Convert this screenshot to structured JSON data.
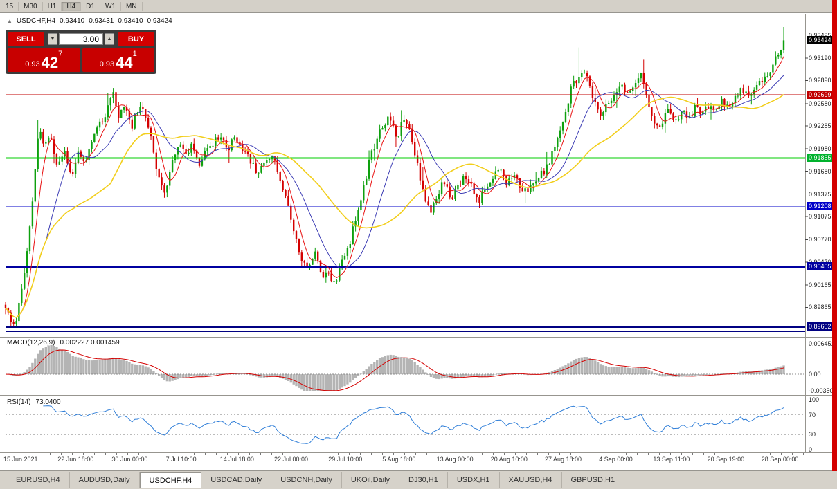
{
  "toolbar": {
    "items": [
      "15",
      "M30",
      "H1",
      "H4",
      "D1",
      "W1",
      "MN"
    ],
    "active": "H4"
  },
  "chart_header": {
    "icon": "▲",
    "symbol": "USDCHF,H4",
    "open": "0.93410",
    "high": "0.93431",
    "low": "0.93410",
    "close": "0.93424"
  },
  "trade_panel": {
    "sell_label": "SELL",
    "buy_label": "BUY",
    "volume_value": "3.00",
    "volume_down_icon": "▼",
    "volume_up_icon": "▲",
    "sell_price": {
      "prefix": "0.93",
      "big": "42",
      "sup": "7"
    },
    "buy_price": {
      "prefix": "0.93",
      "big": "44",
      "sup": "1"
    }
  },
  "price_axis": {
    "ticks": [
      {
        "label": "0.93495",
        "price": 0.93495
      },
      {
        "label": "0.93190",
        "price": 0.9319
      },
      {
        "label": "0.92890",
        "price": 0.9289
      },
      {
        "label": "0.92580",
        "price": 0.9258
      },
      {
        "label": "0.92285",
        "price": 0.92285
      },
      {
        "label": "0.91980",
        "price": 0.9198
      },
      {
        "label": "0.91680",
        "price": 0.9168
      },
      {
        "label": "0.91375",
        "price": 0.91375
      },
      {
        "label": "0.91075",
        "price": 0.91075
      },
      {
        "label": "0.90770",
        "price": 0.9077
      },
      {
        "label": "0.90470",
        "price": 0.9047
      },
      {
        "label": "0.90165",
        "price": 0.90165
      },
      {
        "label": "0.89865",
        "price": 0.89865
      }
    ],
    "current": {
      "label": "0.93424",
      "price": 0.93424,
      "bg": "#000000"
    },
    "badges": [
      {
        "label": "0.92699",
        "price": 0.92699,
        "bg": "#c00000"
      },
      {
        "label": "0.91855",
        "price": 0.91855,
        "bg": "#00b22d"
      },
      {
        "label": "0.91208",
        "price": 0.91208,
        "bg": "#0000c8"
      },
      {
        "label": "0.90405",
        "price": 0.90405,
        "bg": "#0000a0"
      },
      {
        "label": "0.89602",
        "price": 0.89602,
        "bg": "#000082"
      }
    ]
  },
  "time_axis": {
    "labels": [
      "15 Jun 2021",
      "22 Jun 18:00",
      "30 Jun 00:00",
      "7 Jul 10:00",
      "14 Jul 18:00",
      "22 Jul 00:00",
      "29 Jul 10:00",
      "5 Aug 18:00",
      "13 Aug 00:00",
      "20 Aug 10:00",
      "27 Aug 18:00",
      "4 Sep 00:00",
      "13 Sep 11:00",
      "20 Sep 19:00",
      "28 Sep 00:00"
    ]
  },
  "tabs": {
    "items": [
      "EURUSD,H4",
      "AUDUSD,Daily",
      "USDCHF,H4",
      "USDCAD,Daily",
      "USDCNH,Daily",
      "UKOil,Daily",
      "DJ30,H1",
      "USDX,H1",
      "XAUUSD,H4",
      "GBPUSD,H1"
    ],
    "active_index": 2
  },
  "chart_data": [
    {
      "type": "candlestick",
      "symbol": "USDCHF",
      "timeframe": "H4",
      "ohlc_current": {
        "open": 0.9341,
        "high": 0.93431,
        "low": 0.9341,
        "close": 0.93424
      },
      "current_price": 0.93424,
      "candle_count": 290,
      "colors": {
        "up": "#0ea00e",
        "down": "#d40000"
      },
      "y_axis": {
        "price_top": 0.93732,
        "price_bottom": 0.89565
      },
      "x_tick_labels": [
        "15 Jun 2021",
        "22 Jun 18:00",
        "30 Jun 00:00",
        "7 Jul 10:00",
        "14 Jul 18:00",
        "22 Jul 00:00",
        "29 Jul 10:00",
        "5 Aug 18:00",
        "13 Aug 00:00",
        "20 Aug 10:00",
        "27 Aug 18:00",
        "4 Sep 00:00",
        "13 Sep 11:00",
        "20 Sep 19:00",
        "28 Sep 00:00"
      ],
      "levels": [
        {
          "price": 0.92699,
          "color": "#c00000",
          "width": 1
        },
        {
          "price": 0.91855,
          "color": "#00cc00",
          "width": 2
        },
        {
          "price": 0.91208,
          "color": "#0000c8",
          "width": 1
        },
        {
          "price": 0.90405,
          "color": "#0000a0",
          "width": 2
        },
        {
          "price": 0.89602,
          "color": "#000082",
          "width": 2
        },
        {
          "price": 0.8954,
          "color": "#000082",
          "width": 1
        }
      ],
      "moving_averages": [
        {
          "name": "fast-ma",
          "period": 6,
          "color": "#e81010",
          "width": 1
        },
        {
          "name": "medium-ma",
          "period": 16,
          "color": "#3c3cb4",
          "width": 1
        },
        {
          "name": "slow-ma",
          "period": 40,
          "color": "#f2ce1b",
          "width": 1.6
        }
      ],
      "spikes": [
        {
          "f": 0.0427,
          "high": 0.9236
        },
        {
          "f": 0.1379,
          "high": 0.9276
        },
        {
          "f": 0.4235,
          "low": 0.9009
        },
        {
          "f": 0.7367,
          "high": 0.9333
        },
        {
          "f": 1,
          "high": 0.9349
        }
      ],
      "price_path": [
        [
          0,
          0.899
        ],
        [
          0.0053,
          0.8972
        ],
        [
          0.0125,
          0.8963
        ],
        [
          0.0196,
          0.9
        ],
        [
          0.0285,
          0.9065
        ],
        [
          0.0356,
          0.914
        ],
        [
          0.0427,
          0.9225
        ],
        [
          0.0498,
          0.92
        ],
        [
          0.0569,
          0.9215
        ],
        [
          0.0658,
          0.9172
        ],
        [
          0.0747,
          0.9195
        ],
        [
          0.0836,
          0.916
        ],
        [
          0.0925,
          0.919
        ],
        [
          0.1014,
          0.918
        ],
        [
          0.1103,
          0.9205
        ],
        [
          0.1192,
          0.9225
        ],
        [
          0.1281,
          0.9245
        ],
        [
          0.1379,
          0.927
        ],
        [
          0.1459,
          0.9238
        ],
        [
          0.153,
          0.9256
        ],
        [
          0.1619,
          0.9228
        ],
        [
          0.1708,
          0.925
        ],
        [
          0.1797,
          0.9245
        ],
        [
          0.1868,
          0.9215
        ],
        [
          0.1957,
          0.9165
        ],
        [
          0.2046,
          0.9138
        ],
        [
          0.2135,
          0.9175
        ],
        [
          0.2224,
          0.9205
        ],
        [
          0.2313,
          0.9192
        ],
        [
          0.2402,
          0.9206
        ],
        [
          0.2491,
          0.918
        ],
        [
          0.258,
          0.9192
        ],
        [
          0.2669,
          0.9206
        ],
        [
          0.2758,
          0.9216
        ],
        [
          0.2865,
          0.9198
        ],
        [
          0.2954,
          0.9214
        ],
        [
          0.3043,
          0.9196
        ],
        [
          0.3132,
          0.9186
        ],
        [
          0.3221,
          0.9164
        ],
        [
          0.331,
          0.918
        ],
        [
          0.3425,
          0.9192
        ],
        [
          0.3532,
          0.9158
        ],
        [
          0.3621,
          0.9122
        ],
        [
          0.371,
          0.9088
        ],
        [
          0.3799,
          0.9052
        ],
        [
          0.3888,
          0.904
        ],
        [
          0.3977,
          0.9062
        ],
        [
          0.4066,
          0.9032
        ],
        [
          0.4164,
          0.9026
        ],
        [
          0.4235,
          0.9018
        ],
        [
          0.4324,
          0.9046
        ],
        [
          0.4413,
          0.9068
        ],
        [
          0.4502,
          0.9106
        ],
        [
          0.4591,
          0.9142
        ],
        [
          0.468,
          0.9182
        ],
        [
          0.4769,
          0.9212
        ],
        [
          0.4858,
          0.9228
        ],
        [
          0.4947,
          0.924
        ],
        [
          0.5036,
          0.9214
        ],
        [
          0.5107,
          0.9236
        ],
        [
          0.5196,
          0.9224
        ],
        [
          0.5285,
          0.9178
        ],
        [
          0.5374,
          0.914
        ],
        [
          0.5463,
          0.9108
        ],
        [
          0.5552,
          0.9136
        ],
        [
          0.5641,
          0.9156
        ],
        [
          0.573,
          0.9128
        ],
        [
          0.5819,
          0.915
        ],
        [
          0.5908,
          0.9162
        ],
        [
          0.5997,
          0.9144
        ],
        [
          0.6085,
          0.9128
        ],
        [
          0.6174,
          0.915
        ],
        [
          0.6263,
          0.9162
        ],
        [
          0.6352,
          0.9172
        ],
        [
          0.6441,
          0.915
        ],
        [
          0.653,
          0.9162
        ],
        [
          0.6619,
          0.9148
        ],
        [
          0.6708,
          0.914
        ],
        [
          0.6797,
          0.9158
        ],
        [
          0.6922,
          0.9166
        ],
        [
          0.7011,
          0.9186
        ],
        [
          0.71,
          0.9214
        ],
        [
          0.7189,
          0.9248
        ],
        [
          0.7278,
          0.928
        ],
        [
          0.7367,
          0.9292
        ],
        [
          0.7456,
          0.9302
        ],
        [
          0.7545,
          0.9266
        ],
        [
          0.7634,
          0.9242
        ],
        [
          0.7723,
          0.9256
        ],
        [
          0.7812,
          0.9272
        ],
        [
          0.79,
          0.9282
        ],
        [
          0.7989,
          0.927
        ],
        [
          0.8078,
          0.9286
        ],
        [
          0.8167,
          0.9296
        ],
        [
          0.8256,
          0.9258
        ],
        [
          0.8327,
          0.9238
        ],
        [
          0.8416,
          0.9226
        ],
        [
          0.8505,
          0.925
        ],
        [
          0.8594,
          0.9236
        ],
        [
          0.8683,
          0.9246
        ],
        [
          0.8772,
          0.924
        ],
        [
          0.8861,
          0.9252
        ],
        [
          0.895,
          0.9246
        ],
        [
          0.9021,
          0.9256
        ],
        [
          0.911,
          0.9246
        ],
        [
          0.9199,
          0.9262
        ],
        [
          0.9288,
          0.9252
        ],
        [
          0.9377,
          0.9266
        ],
        [
          0.9466,
          0.9276
        ],
        [
          0.9555,
          0.9266
        ],
        [
          0.9644,
          0.928
        ],
        [
          0.9733,
          0.9292
        ],
        [
          0.9822,
          0.9302
        ],
        [
          0.9911,
          0.9322
        ],
        [
          1,
          0.9342
        ]
      ]
    },
    {
      "type": "macd",
      "label": "MACD(12,26,9)",
      "values_text": "0.002227 0.001459",
      "main_value": 0.002227,
      "signal_value": 0.001459,
      "params": {
        "fast": 12,
        "slow": 26,
        "signal": 9
      },
      "histogram_color": "#b4b4b4",
      "signal_color": "#d40000",
      "axis_ticks": [
        {
          "label": "0.006451",
          "value": 0.006451
        },
        {
          "label": "0.00",
          "value": 0
        },
        {
          "label": "-0.00350",
          "value": -0.0035
        }
      ]
    },
    {
      "type": "rsi",
      "label": "RSI(14)",
      "value_text": "73.0400",
      "value": 73.04,
      "period": 14,
      "line_color": "#2f7ed8",
      "axis_levels": [
        {
          "label": "100",
          "value": 100
        },
        {
          "label": "70",
          "value": 70
        },
        {
          "label": "30",
          "value": 30
        },
        {
          "label": "0",
          "value": 0
        }
      ]
    }
  ]
}
